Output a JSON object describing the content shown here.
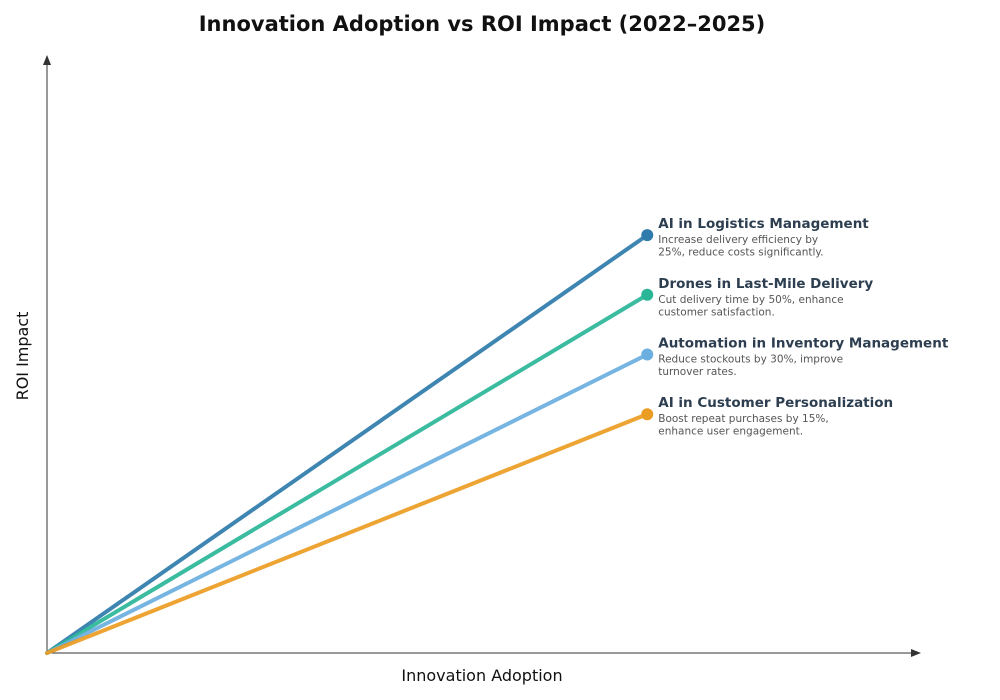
{
  "chart_data": {
    "type": "line",
    "title": "Innovation Adoption vs ROI Impact (2022–2025)",
    "xlabel": "Innovation Adoption",
    "ylabel": "ROI Impact",
    "xlim": [
      0,
      10
    ],
    "ylim": [
      0,
      10
    ],
    "grid": false,
    "legend": "inline labels at line ends",
    "series": [
      {
        "name": "AI in Logistics Management",
        "description_lines": [
          "Increase delivery efficiency by",
          "25%, reduce costs significantly."
        ],
        "color": "#2e7bab",
        "points": [
          [
            0,
            0
          ],
          [
            6.86,
            7.0
          ]
        ]
      },
      {
        "name": "Drones in Last-Mile Delivery",
        "description_lines": [
          "Cut delivery time by 50%, enhance",
          "customer satisfaction."
        ],
        "color": "#2ab597",
        "points": [
          [
            0,
            0
          ],
          [
            6.86,
            6.0
          ]
        ]
      },
      {
        "name": "Automation in Inventory Management",
        "description_lines": [
          "Reduce stockouts by 30%, improve",
          "turnover rates."
        ],
        "color": "#6aafe0",
        "points": [
          [
            0,
            0
          ],
          [
            6.86,
            5.0
          ]
        ]
      },
      {
        "name": "AI in Customer Personalization",
        "description_lines": [
          "Boost repeat purchases by 15%,",
          "enhance user engagement."
        ],
        "color": "#eb9c22",
        "points": [
          [
            0,
            0
          ],
          [
            6.86,
            4.0
          ]
        ]
      }
    ]
  }
}
